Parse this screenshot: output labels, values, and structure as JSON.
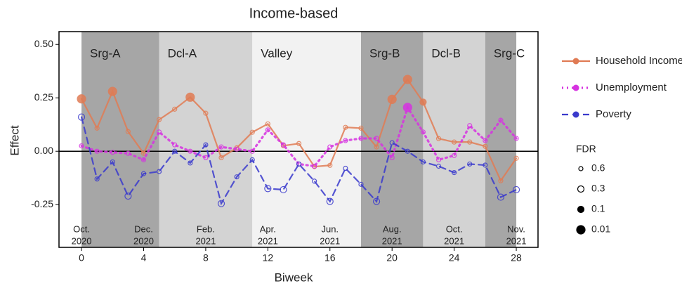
{
  "chart_data": {
    "type": "line",
    "title": "Income-based",
    "x_label": "Biweek",
    "y_label": "Effect",
    "x": [
      0,
      1,
      2,
      3,
      4,
      5,
      6,
      7,
      8,
      9,
      10,
      11,
      12,
      13,
      14,
      15,
      16,
      17,
      18,
      19,
      20,
      21,
      22,
      23,
      24,
      25,
      26,
      27,
      28
    ],
    "series": [
      {
        "name": "Household Income",
        "color": "#e07b54",
        "style": "solid",
        "values": [
          0.245,
          0.108,
          0.28,
          0.092,
          -0.01,
          0.148,
          0.197,
          0.253,
          0.178,
          -0.03,
          0.016,
          0.089,
          0.128,
          0.026,
          0.036,
          -0.072,
          -0.066,
          0.112,
          0.108,
          0.02,
          0.243,
          0.336,
          0.23,
          0.059,
          0.043,
          0.043,
          0.023,
          -0.138,
          -0.033
        ],
        "fdr": [
          0.01,
          0.6,
          0.01,
          0.6,
          0.6,
          0.6,
          0.6,
          0.01,
          0.6,
          0.6,
          0.6,
          0.6,
          0.6,
          0.6,
          0.6,
          0.6,
          0.6,
          0.6,
          0.6,
          0.6,
          0.01,
          0.01,
          0.1,
          0.6,
          0.6,
          0.6,
          0.6,
          0.6,
          0.6
        ]
      },
      {
        "name": "Unemployment",
        "color": "#d633e0",
        "style": "dotted",
        "values": [
          0.025,
          0.0,
          -0.005,
          -0.01,
          -0.04,
          0.09,
          0.03,
          0.0,
          -0.03,
          0.02,
          0.01,
          0.0,
          0.1,
          0.03,
          -0.06,
          -0.07,
          0.02,
          0.05,
          0.06,
          0.06,
          -0.03,
          0.205,
          0.09,
          -0.04,
          -0.02,
          0.12,
          0.05,
          0.145,
          0.06
        ],
        "fdr": [
          0.6,
          0.6,
          0.6,
          0.6,
          0.6,
          0.6,
          0.6,
          0.6,
          0.6,
          0.6,
          0.6,
          0.6,
          0.6,
          0.6,
          0.6,
          0.6,
          0.6,
          0.6,
          0.6,
          0.6,
          0.6,
          0.01,
          0.6,
          0.6,
          0.6,
          0.6,
          0.6,
          0.6,
          0.6
        ]
      },
      {
        "name": "Poverty",
        "color": "#3a3acc",
        "style": "dashed",
        "values": [
          0.16,
          -0.13,
          -0.05,
          -0.21,
          -0.105,
          -0.095,
          0.0,
          -0.055,
          0.03,
          -0.245,
          -0.12,
          -0.04,
          -0.175,
          -0.18,
          -0.06,
          -0.14,
          -0.235,
          -0.08,
          -0.155,
          -0.235,
          0.04,
          0.0,
          -0.05,
          -0.07,
          -0.1,
          -0.06,
          -0.065,
          -0.215,
          -0.18
        ],
        "fdr": [
          0.3,
          0.6,
          0.6,
          0.3,
          0.6,
          0.6,
          0.6,
          0.6,
          0.6,
          0.3,
          0.6,
          0.6,
          0.3,
          0.3,
          0.6,
          0.6,
          0.3,
          0.6,
          0.6,
          0.3,
          0.6,
          0.6,
          0.6,
          0.6,
          0.6,
          0.6,
          0.6,
          0.3,
          0.3
        ]
      }
    ],
    "periods": [
      {
        "label": "Srg-A",
        "start": 0,
        "end": 5,
        "color": "#a6a6a6"
      },
      {
        "label": "Dcl-A",
        "start": 5,
        "end": 11,
        "color": "#d3d3d3"
      },
      {
        "label": "Valley",
        "start": 11,
        "end": 18,
        "color": "#f2f2f2"
      },
      {
        "label": "Srg-B",
        "start": 18,
        "end": 22,
        "color": "#a6a6a6"
      },
      {
        "label": "Dcl-B",
        "start": 22,
        "end": 26,
        "color": "#d3d3d3"
      },
      {
        "label": "Srg-C",
        "start": 26,
        "end": 28,
        "color": "#a6a6a6"
      }
    ],
    "date_labels": [
      {
        "x": 0,
        "month": "Oct.",
        "year": "2020"
      },
      {
        "x": 4,
        "month": "Dec.",
        "year": "2020"
      },
      {
        "x": 8,
        "month": "Feb.",
        "year": "2021"
      },
      {
        "x": 12,
        "month": "Apr.",
        "year": "2021"
      },
      {
        "x": 16,
        "month": "Jun.",
        "year": "2021"
      },
      {
        "x": 20,
        "month": "Aug.",
        "year": "2021"
      },
      {
        "x": 24,
        "month": "Oct.",
        "year": "2021"
      },
      {
        "x": 28,
        "month": "Nov.",
        "year": "2021"
      }
    ],
    "size_legend": {
      "title": "FDR",
      "values": [
        0.6,
        0.3,
        0.1,
        0.01
      ]
    },
    "xlim": [
      -1.45,
      29.4
    ],
    "xticks": [
      0,
      4,
      8,
      12,
      16,
      20,
      24,
      28
    ],
    "ylim": [
      -0.45,
      0.56
    ],
    "yticks": [
      -0.25,
      {
        "value": 0,
        "label": "0.00"
      },
      0.25,
      {
        "value": 0.5,
        "label": "0.50"
      }
    ]
  }
}
